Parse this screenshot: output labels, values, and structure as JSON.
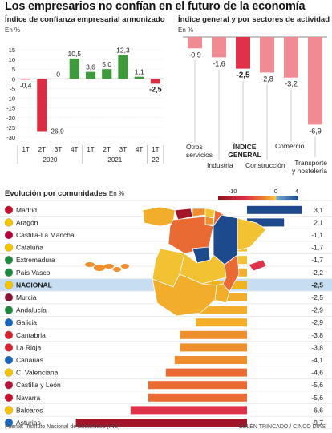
{
  "header": {
    "title": "Los empresarios no confían en el futuro de la economía"
  },
  "footer": {
    "source": "Fuente: Instituto Nacional de Estadística (INE)",
    "credit": "BELÉN TRINCADO / CINCO DÍAS"
  },
  "colors": {
    "positive": "#3f9a3b",
    "negative": "#d92d43",
    "pink": "#f08b93",
    "highlight_red": "#e0304a",
    "dark_blue": "#1d4a8c",
    "light_blue": "#7aa7d8",
    "map_bg": "#f0b11e",
    "gray_line": "#bbbbbb"
  },
  "chart_data": [
    {
      "type": "bar",
      "title": "Índice de confianza empresarial armonizado",
      "ylabel": "En %",
      "ylim": [
        -30,
        15
      ],
      "yticks": [
        15,
        10,
        5,
        0,
        -5,
        -10,
        -15,
        -20,
        -25,
        -30
      ],
      "categories": [
        "1T",
        "2T",
        "3T",
        "4T",
        "1T",
        "2T",
        "3T",
        "4T",
        "1T"
      ],
      "years": [
        {
          "label": "2020",
          "from": 0,
          "to": 3
        },
        {
          "label": "2021",
          "from": 4,
          "to": 7
        },
        {
          "label": "22",
          "from": 8,
          "to": 8
        }
      ],
      "values": [
        -0.4,
        -26.9,
        0,
        10.5,
        3.6,
        5.0,
        12.3,
        1.1,
        -2.5
      ],
      "labels": [
        "-0,4",
        "-26,9",
        "0",
        "10,5",
        "3,6",
        "5,0",
        "12,3",
        "1,1",
        "-2,5"
      ],
      "highlight_index": 8,
      "grid": true
    },
    {
      "type": "bar",
      "title": "Índice general y por sectores de actividad",
      "ylabel": "En %",
      "ylim": [
        -7,
        0
      ],
      "categories": [
        "Otros servicios",
        "Industria",
        "ÍNDICE GENERAL",
        "Construcción",
        "Comercio",
        "Transporte y hostelería"
      ],
      "values": [
        -0.9,
        -1.6,
        -2.5,
        -2.8,
        -3.2,
        -6.9
      ],
      "labels": [
        "-0,9",
        "-1,6",
        "-2,5",
        "-2,8",
        "-3,2",
        "-6,9"
      ],
      "highlight_index": 2
    },
    {
      "type": "bar",
      "orientation": "horizontal",
      "title": "Evolución por comunidades",
      "ylabel": "En %",
      "legend": {
        "labels": [
          "-10",
          "0",
          "4"
        ],
        "placement": "top-right"
      },
      "categories": [
        "Madrid",
        "Aragón",
        "Castilla-La Mancha",
        "Cataluña",
        "Extremadura",
        "País Vasco",
        "NACIONAL",
        "Murcia",
        "Andalucía",
        "Galicia",
        "Cantabria",
        "La Rioja",
        "Canarias",
        "C. Valenciana",
        "Castilla y León",
        "Navarra",
        "Baleares",
        "Asturias"
      ],
      "values": [
        3.1,
        2.1,
        -1.1,
        -1.7,
        -1.7,
        -2.2,
        -2.5,
        -2.5,
        -2.9,
        -2.9,
        -3.8,
        -3.8,
        -4.1,
        -4.6,
        -5.6,
        -5.6,
        -6.6,
        -9.7
      ],
      "labels": [
        "3,1",
        "2,1",
        "-1,1",
        "-1,7",
        "-1,7",
        "-2,2",
        "-2,5",
        "-2,5",
        "-2,9",
        "-2,9",
        "-3,8",
        "-3,8",
        "-4,1",
        "-4,6",
        "-5,6",
        "-5,6",
        "-6,6",
        "-9,7"
      ],
      "highlight_index": 6
    }
  ]
}
